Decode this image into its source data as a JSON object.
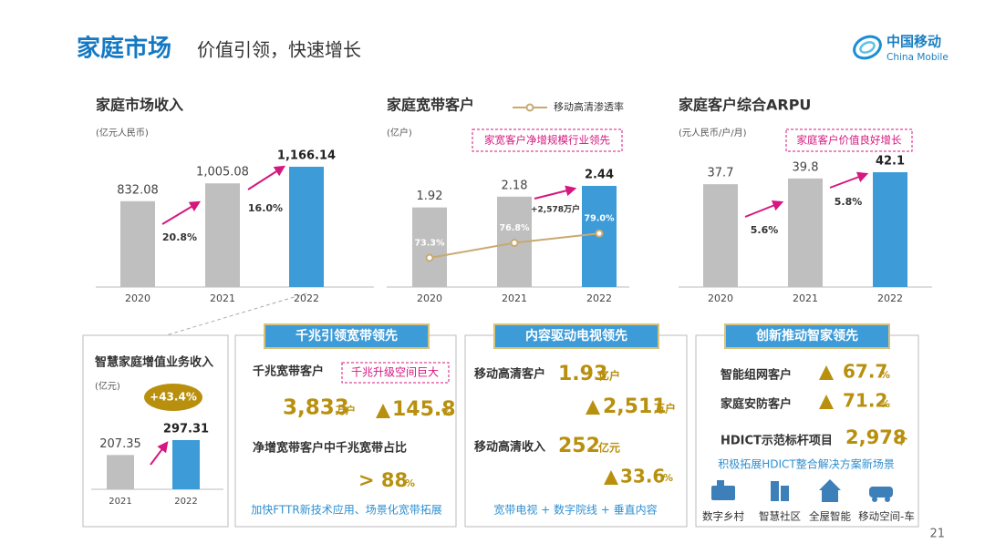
{
  "header": {
    "title_main": "家庭市场",
    "title_sub": "价值引领，快速增长",
    "logo_cn": "中国移动",
    "logo_en": "China Mobile"
  },
  "chart_data": [
    {
      "type": "bar",
      "title": "家庭市场收入",
      "subtitle": "(亿元人民币)",
      "categories": [
        "2020",
        "2021",
        "2022"
      ],
      "values": [
        832.08,
        1005.08,
        1166.14
      ],
      "value_labels": [
        "832.08",
        "1,005.08",
        "1,166.14"
      ],
      "colors": [
        "#bfbfbf",
        "#bfbfbf",
        "#3d9bd8"
      ],
      "annotations": [
        "20.8%",
        "16.0%"
      ]
    },
    {
      "type": "bar",
      "title": "家庭宽带客户",
      "subtitle": "(亿户)",
      "callout": "家宽客户净增规模行业领先",
      "categories": [
        "2020",
        "2021",
        "2022"
      ],
      "values": [
        1.92,
        2.18,
        2.44
      ],
      "colors": [
        "#bfbfbf",
        "#bfbfbf",
        "#3d9bd8"
      ],
      "annotations": [
        "+2,578万户"
      ],
      "series": [
        {
          "name": "移动高清渗透率",
          "color": "#c8aa70",
          "values": [
            73.3,
            76.8,
            79.0
          ],
          "value_labels": [
            "73.3%",
            "76.8%",
            "79.0%"
          ]
        }
      ]
    },
    {
      "type": "bar",
      "title": "家庭客户综合ARPU",
      "subtitle": "(元人民币/户/月)",
      "callout": "家庭客户价值良好增长",
      "categories": [
        "2020",
        "2021",
        "2022"
      ],
      "values": [
        37.7,
        39.8,
        42.1
      ],
      "colors": [
        "#bfbfbf",
        "#bfbfbf",
        "#3d9bd8"
      ],
      "annotations": [
        "5.6%",
        "5.8%"
      ]
    },
    {
      "type": "bar",
      "title": "智慧家庭增值业务收入",
      "subtitle": "(亿元)",
      "categories": [
        "2021",
        "2022"
      ],
      "values": [
        207.35,
        297.31
      ],
      "colors": [
        "#bfbfbf",
        "#3d9bd8"
      ],
      "badge": "+43.4%"
    }
  ],
  "panels": [
    {
      "title": "千兆引领宽带领先",
      "items": [
        {
          "label": "千兆宽带客户",
          "tag": "千兆升级空间巨大",
          "value": "3,833",
          "unit": "万户",
          "growth": "145.8",
          "growth_unit": "%"
        },
        {
          "label": "净增宽带客户中千兆宽带占比",
          "value": "> 88",
          "unit": "%"
        }
      ],
      "footer": "加快FTTR新技术应用、场景化宽带拓展"
    },
    {
      "title": "内容驱动电视领先",
      "items": [
        {
          "label": "移动高清客户",
          "value": "1.93",
          "unit": "亿户",
          "growth": "2,511",
          "growth_unit": "万户"
        },
        {
          "label": "移动高清收入",
          "value": "252",
          "unit": "亿元",
          "growth": "33.6",
          "growth_unit": "%"
        }
      ],
      "footer": "宽带电视 + 数字院线 + 垂直内容"
    },
    {
      "title": "创新推动智家领先",
      "items": [
        {
          "label": "智能组网客户",
          "growth": "67.7",
          "growth_unit": "%"
        },
        {
          "label": "家庭安防客户",
          "growth": "71.2",
          "growth_unit": "%"
        },
        {
          "label": "HDICT示范标杆项目",
          "value": "2,978",
          "unit": "个"
        }
      ],
      "footer": "积极拓展HDICT整合解决方案新场景",
      "scenes": [
        "数字乡村",
        "智慧社区",
        "全屋智能",
        "移动空间-车"
      ]
    }
  ],
  "page_number": "21"
}
